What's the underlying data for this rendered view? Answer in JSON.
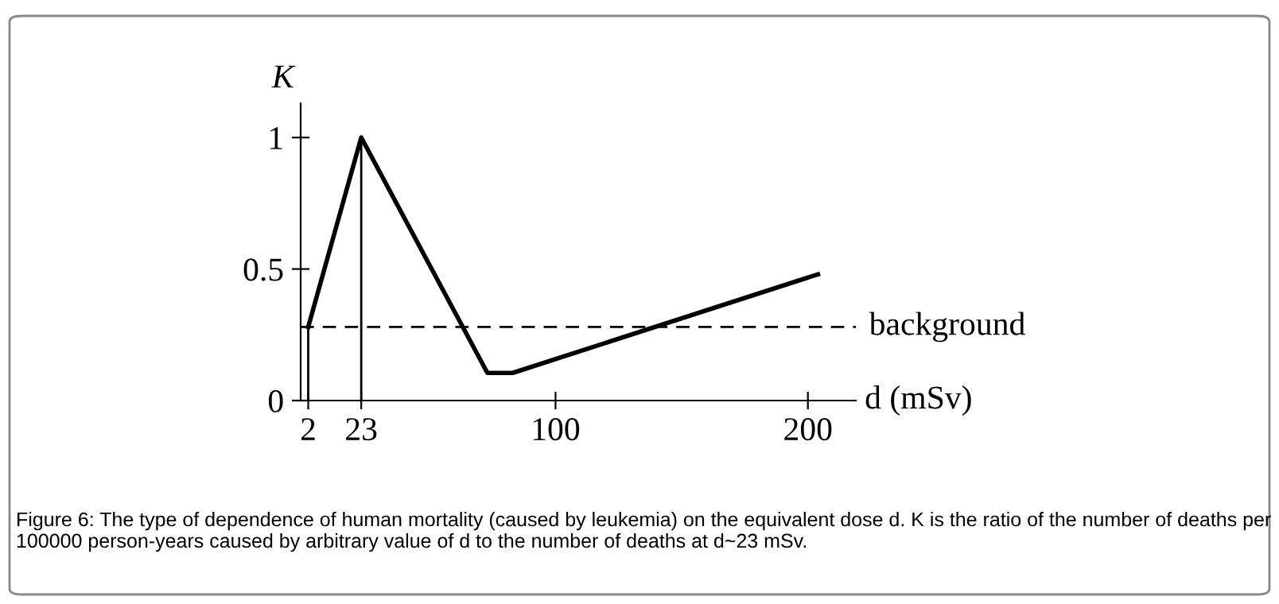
{
  "chart_data": {
    "type": "line",
    "xlabel": "d (mSv)",
    "ylabel": "K",
    "x": [
      2,
      23,
      73,
      83,
      204
    ],
    "series": [
      {
        "color": "#000000",
        "values": [
          0.28,
          1,
          0.105,
          0.105,
          0.48
        ]
      }
    ],
    "xlim": [
      -1,
      219
    ],
    "ylim": [
      0,
      1.13
    ],
    "xticks": [
      2,
      23,
      100,
      200
    ],
    "yticks": [
      0,
      0.5,
      1
    ],
    "ref_lines": [
      {
        "axis": "y",
        "value": 0.28,
        "label": "background",
        "color": "#000000",
        "line_style": "dashed"
      },
      {
        "axis": "x",
        "value": 2,
        "color": "#000000"
      },
      {
        "axis": "x",
        "value": 23,
        "color": "#000000"
      }
    ],
    "grid": false,
    "legend": false,
    "marker": "none",
    "line_style": "solid",
    "annotations": [
      "Figure 6: The type of dependence of human mortality (caused by leukemia) on the equivalent dose d. K is the ratio of the number of deaths per 100000 person-years caused by arbitrary value of d to the number of deaths at d~23 mSv."
    ]
  }
}
